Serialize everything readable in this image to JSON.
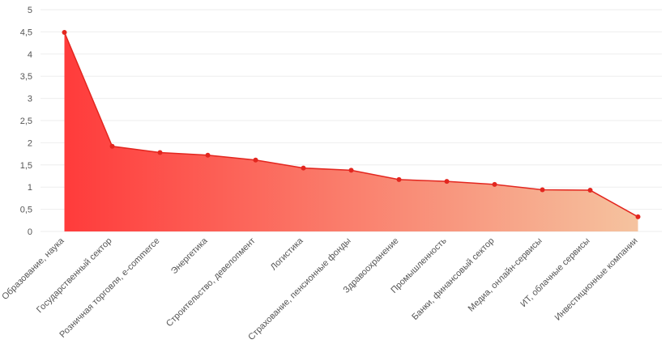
{
  "chart_data": {
    "type": "area",
    "categories": [
      "Образование, наука",
      "Государственный сектор",
      "Розничная торговля, e-commerce",
      "Энергетика",
      "Строительство, девелопмент",
      "Логистика",
      "Страхование, пенсионные фонды",
      "Здравоохранение",
      "Промышленность",
      "Банки, финансовый сектор",
      "Медиа, онлайн-сервисы",
      "ИТ, облачные сервисы",
      "Инвестиционные компании"
    ],
    "values": [
      4.49,
      1.92,
      1.78,
      1.72,
      1.61,
      1.43,
      1.38,
      1.17,
      1.13,
      1.06,
      0.94,
      0.93,
      0.33
    ],
    "color": "#e3261f",
    "fill_gradient": [
      "#ff3b3b",
      "#f5c39f"
    ],
    "ylim": [
      0,
      5
    ],
    "yticks": [
      0,
      {
        "value": 0.5,
        "label": "0,5"
      },
      1,
      {
        "value": 1.5,
        "label": "1,5"
      },
      2,
      {
        "value": 2.5,
        "label": "2,5"
      },
      3,
      {
        "value": 3.5,
        "label": "3,5"
      },
      4,
      {
        "value": 4.5,
        "label": "4,5"
      },
      5
    ],
    "grid": true
  }
}
